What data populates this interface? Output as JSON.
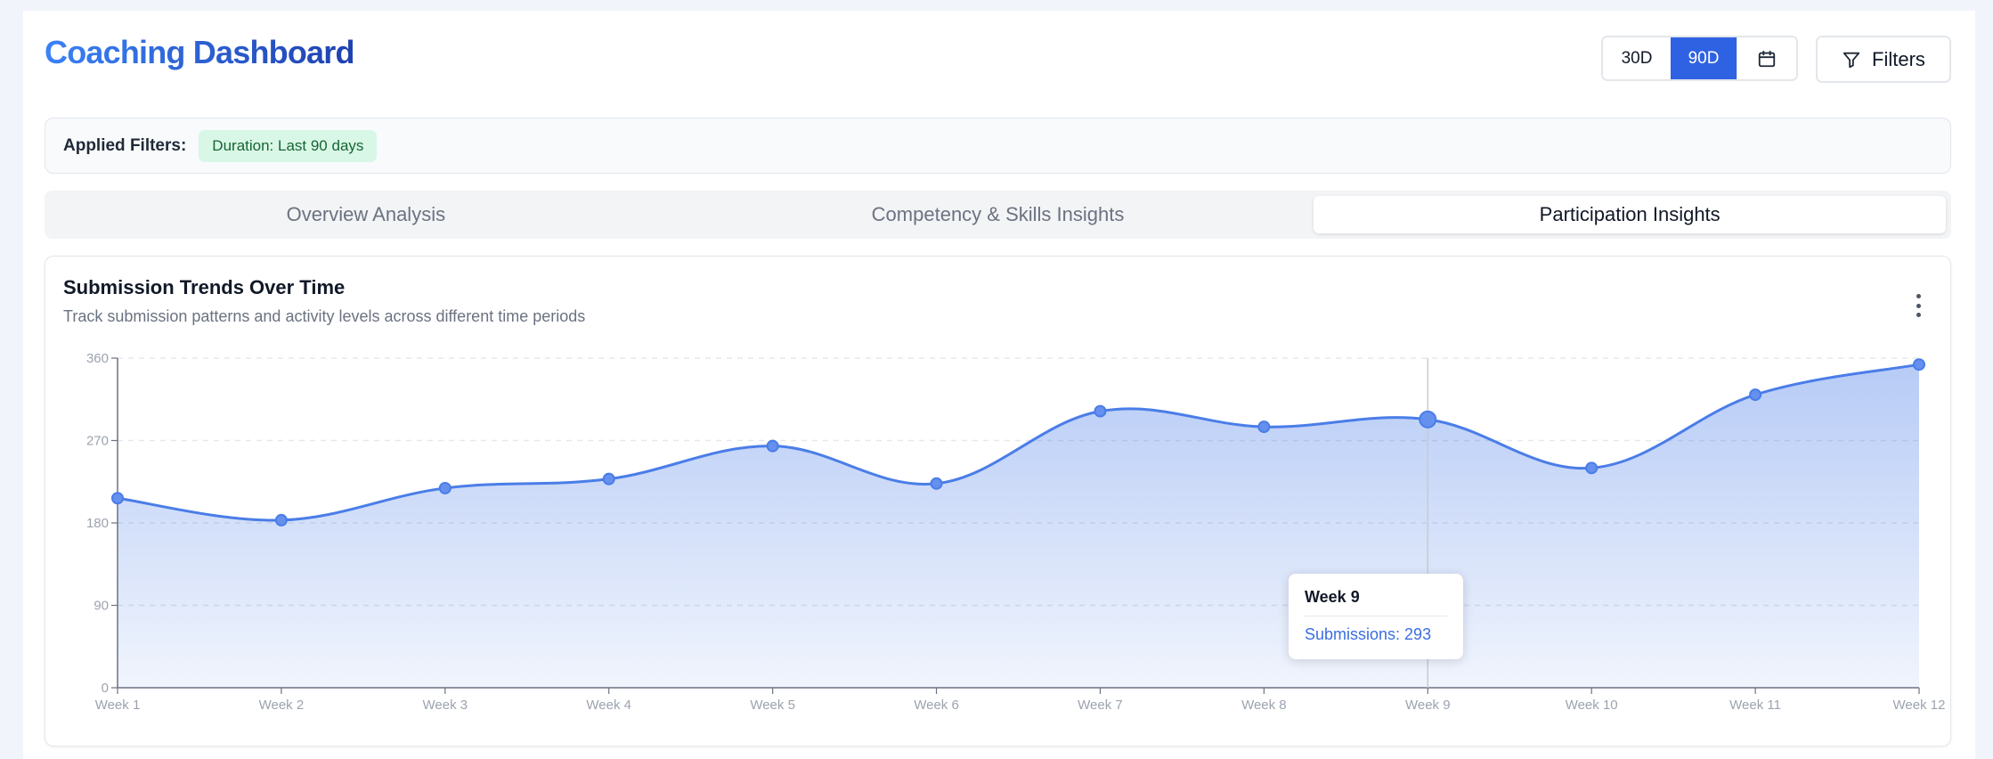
{
  "header": {
    "title": "Coaching Dashboard",
    "range_options": [
      "30D",
      "90D"
    ],
    "selected_range": "90D",
    "filters_label": "Filters"
  },
  "applied_filters": {
    "label": "Applied Filters:",
    "chips": [
      "Duration: Last 90 days"
    ]
  },
  "tabs": [
    {
      "label": "Overview Analysis",
      "active": false
    },
    {
      "label": "Competency & Skills Insights",
      "active": false
    },
    {
      "label": "Participation Insights",
      "active": true
    }
  ],
  "card": {
    "title": "Submission Trends Over Time",
    "subtitle": "Track submission patterns and activity levels across different time periods"
  },
  "tooltip": {
    "title": "Week 9",
    "value": "Submissions: 293"
  },
  "colors": {
    "accent": "#2f62e3",
    "line": "#4a7de8",
    "chip_bg": "#d9f7e6",
    "chip_text": "#166534"
  },
  "chart_data": {
    "type": "area",
    "categories": [
      "Week 1",
      "Week 2",
      "Week 3",
      "Week 4",
      "Week 5",
      "Week 6",
      "Week 7",
      "Week 8",
      "Week 9",
      "Week 10",
      "Week 11",
      "Week 12"
    ],
    "series": [
      {
        "values": [
          207,
          183,
          218,
          228,
          264,
          223,
          302,
          285,
          293,
          240,
          320,
          353
        ]
      }
    ],
    "y_ticks": [
      0,
      90,
      180,
      270,
      360
    ],
    "ylim": [
      0,
      360
    ],
    "grid": true,
    "highlighted_index": 8
  }
}
